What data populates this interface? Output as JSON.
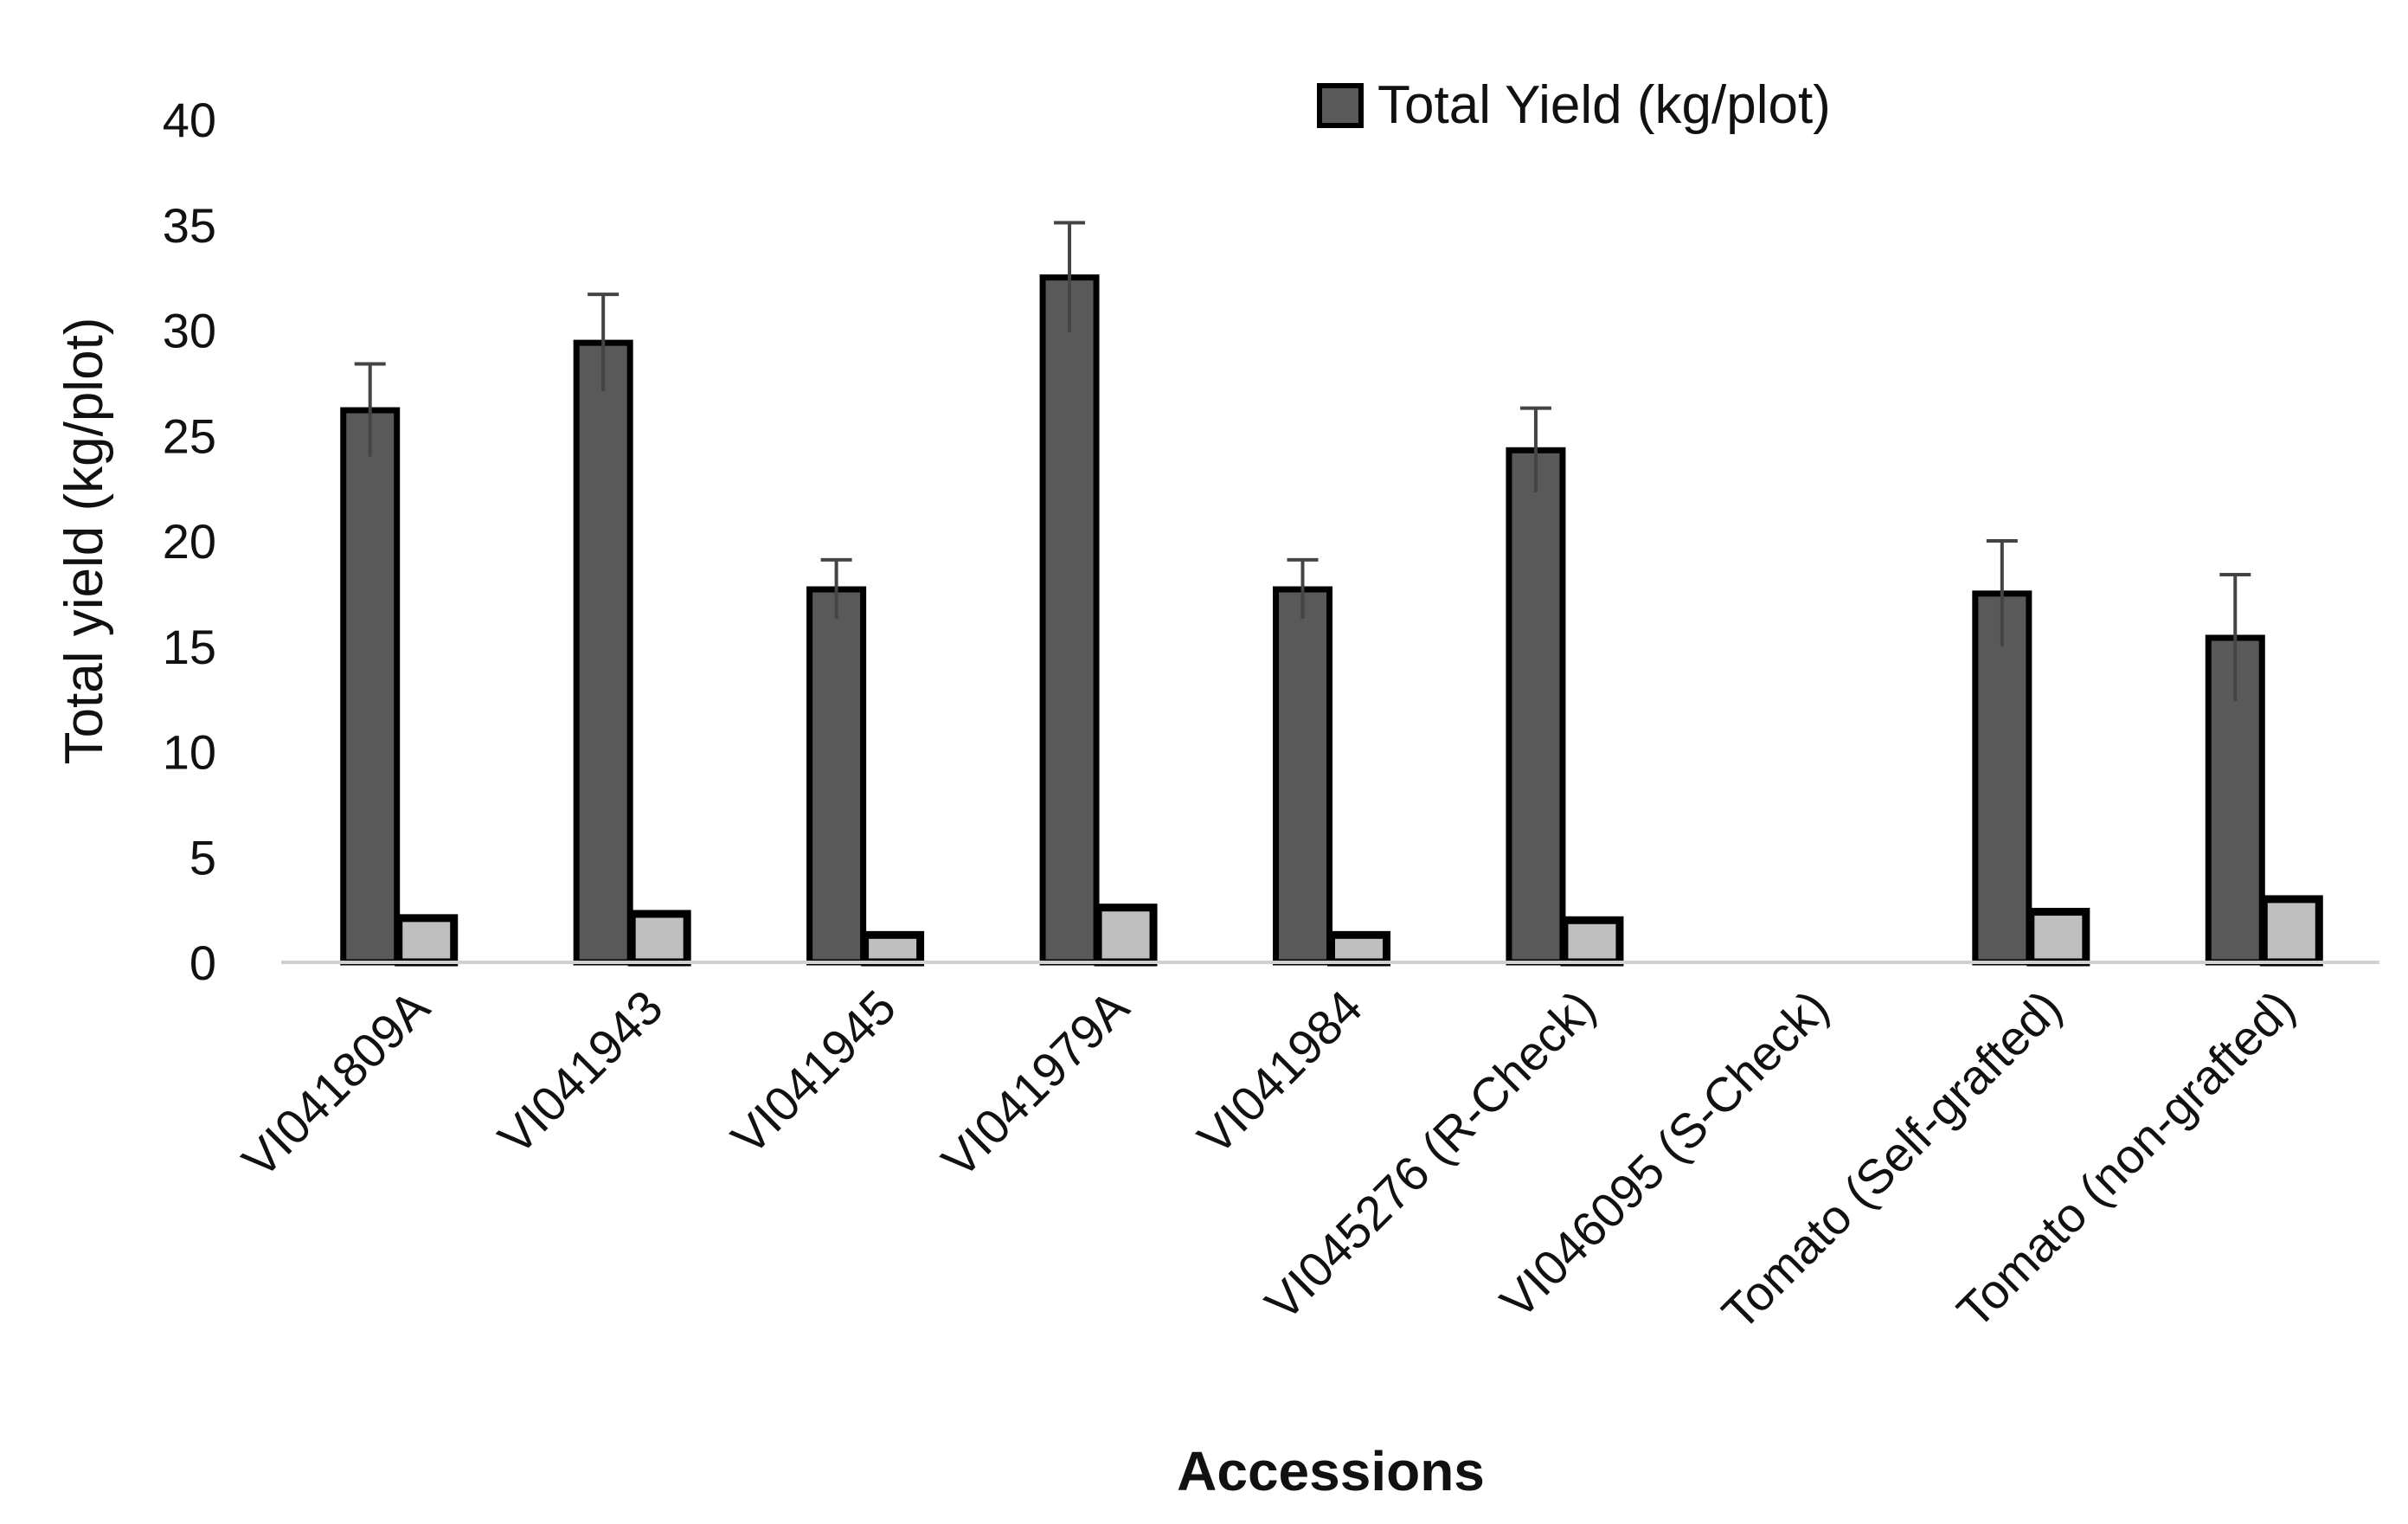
{
  "chart_data": {
    "type": "bar",
    "ylabel": "Total yield (kg/plot)",
    "xlabel": "Accessions",
    "ylim": [
      0,
      40
    ],
    "yticks": [
      0,
      5,
      10,
      15,
      20,
      25,
      30,
      35,
      40
    ],
    "grid": false,
    "legend_position": "top-right",
    "categories": [
      "VI041809A",
      "VI041943",
      "VI041945",
      "VI041979A",
      "VI041984",
      "VI045276 (R-Check)",
      "VI046095 (S-Check)",
      "Tomato (Self-grafted)",
      "Tomato (non-grafted)"
    ],
    "series": [
      {
        "name": "Total Yield (kg/plot)",
        "color": "#595959",
        "values": [
          26.2,
          29.4,
          17.7,
          32.5,
          17.7,
          24.3,
          0,
          17.5,
          15.4
        ],
        "error": [
          2.2,
          2.3,
          1.4,
          2.6,
          1.4,
          2.0,
          0,
          2.5,
          3.0
        ]
      },
      {
        "name": "",
        "color": "#bfbfbf",
        "values": [
          2.1,
          2.3,
          1.3,
          2.6,
          1.3,
          2.0,
          0,
          2.4,
          3.0
        ]
      }
    ]
  }
}
